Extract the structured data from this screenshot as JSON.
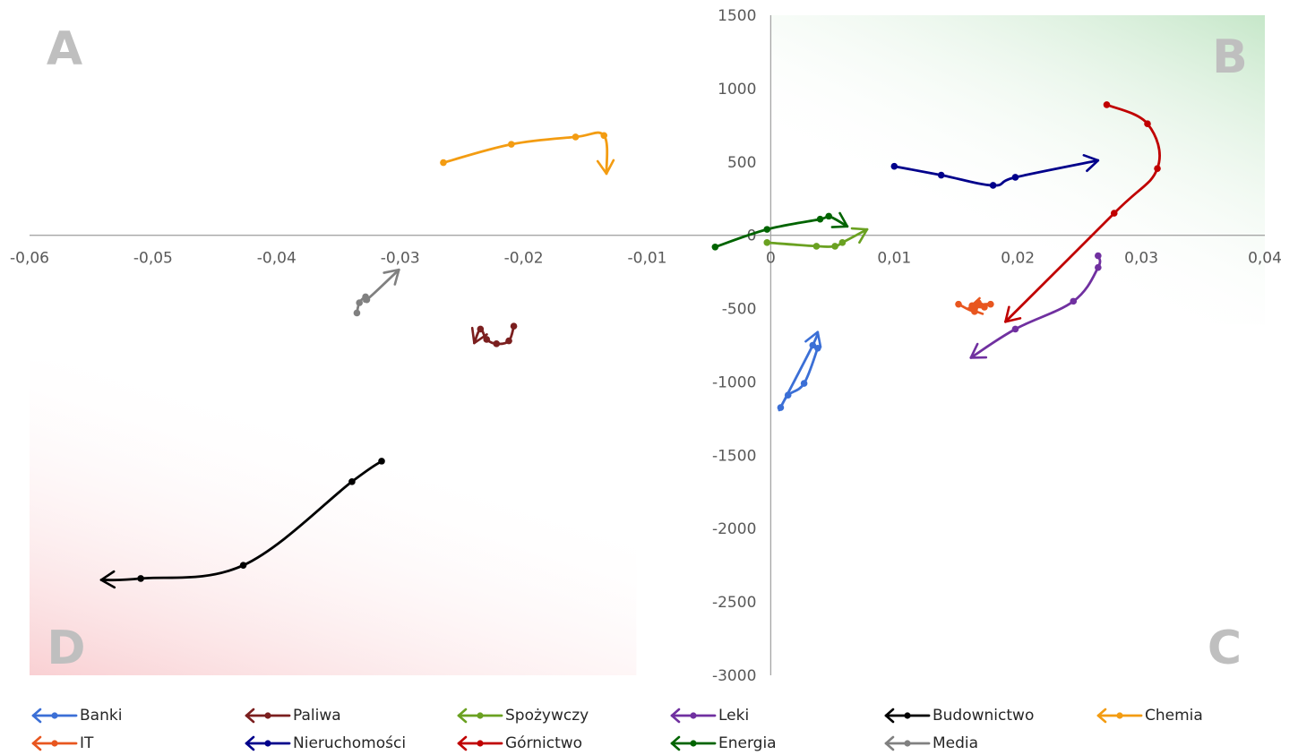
{
  "chart_data": {
    "type": "scatter",
    "xlim": [
      -0.06,
      0.04
    ],
    "ylim": [
      -3000,
      1500
    ],
    "x_ticks": [
      -0.06,
      -0.05,
      -0.04,
      -0.03,
      -0.02,
      -0.01,
      0,
      0.01,
      0.02,
      0.03,
      0.04
    ],
    "x_tick_labels": [
      "-0,06",
      "-0,05",
      "-0,04",
      "-0,03",
      "-0,02",
      "-0,01",
      "0",
      "0,01",
      "0,02",
      "0,03",
      "0,04"
    ],
    "y_ticks": [
      1500,
      1000,
      500,
      0,
      -500,
      -1000,
      -1500,
      -2000,
      -2500,
      -3000
    ],
    "y_tick_labels": [
      "1500",
      "1000",
      "500",
      "0",
      "-500",
      "-1000",
      "-1500",
      "-2000",
      "-2500",
      "-3000"
    ],
    "grid": false,
    "legend_position": "bottom",
    "quadrants": [
      {
        "label": "A",
        "position": "top-left"
      },
      {
        "label": "B",
        "position": "top-right",
        "shade": "#c6e7c9"
      },
      {
        "label": "C",
        "position": "bottom-right"
      },
      {
        "label": "D",
        "position": "bottom-left",
        "shade": "#f9d0d3"
      }
    ],
    "series": [
      {
        "name": "Banki",
        "color": "#3b6fd6",
        "points": [
          [
            0.0038,
            -770
          ],
          [
            0.0027,
            -1010
          ],
          [
            0.0014,
            -1090
          ],
          [
            0.0008,
            -1175
          ],
          [
            0.0034,
            -750
          ],
          [
            0.0038,
            -660
          ]
        ]
      },
      {
        "name": "Paliwa",
        "color": "#7b1f1f",
        "points": [
          [
            -0.0208,
            -620
          ],
          [
            -0.0212,
            -720
          ],
          [
            -0.0222,
            -740
          ],
          [
            -0.023,
            -710
          ],
          [
            -0.0235,
            -640
          ],
          [
            -0.024,
            -735
          ]
        ]
      },
      {
        "name": "Spożywczy",
        "color": "#6aa121",
        "points": [
          [
            -0.0003,
            -50
          ],
          [
            0.0037,
            -75
          ],
          [
            0.0052,
            -75
          ],
          [
            0.0058,
            -50
          ],
          [
            0.0078,
            40
          ]
        ]
      },
      {
        "name": "Leki",
        "color": "#7030a0",
        "points": [
          [
            0.0265,
            -140
          ],
          [
            0.0265,
            -220
          ],
          [
            0.0245,
            -450
          ],
          [
            0.0198,
            -640
          ],
          [
            0.0162,
            -835
          ]
        ]
      },
      {
        "name": "Budownictwo",
        "color": "#000000",
        "points": [
          [
            -0.0315,
            -1540
          ],
          [
            -0.0339,
            -1680
          ],
          [
            -0.0427,
            -2250
          ],
          [
            -0.051,
            -2340
          ],
          [
            -0.0542,
            -2350
          ]
        ]
      },
      {
        "name": "Chemia",
        "color": "#f39c12",
        "points": [
          [
            -0.0265,
            495
          ],
          [
            -0.021,
            620
          ],
          [
            -0.0158,
            670
          ],
          [
            -0.0135,
            680
          ],
          [
            -0.0133,
            420
          ]
        ]
      },
      {
        "name": "IT",
        "color": "#e8561f",
        "points": [
          [
            0.0152,
            -470
          ],
          [
            0.0165,
            -520
          ],
          [
            0.0168,
            -460
          ],
          [
            0.0173,
            -490
          ],
          [
            0.0163,
            -480
          ],
          [
            0.0178,
            -470
          ],
          [
            0.016,
            -500
          ]
        ]
      },
      {
        "name": "Nieruchomości",
        "color": "#00008b",
        "points": [
          [
            0.01,
            470
          ],
          [
            0.0138,
            410
          ],
          [
            0.018,
            340
          ],
          [
            0.0198,
            395
          ],
          [
            0.0265,
            510
          ]
        ]
      },
      {
        "name": "Górnictwo",
        "color": "#c00000",
        "points": [
          [
            0.0272,
            890
          ],
          [
            0.0305,
            760
          ],
          [
            0.0313,
            455
          ],
          [
            0.0278,
            150
          ],
          [
            0.019,
            -590
          ]
        ]
      },
      {
        "name": "Energia",
        "color": "#006400",
        "points": [
          [
            -0.0045,
            -80
          ],
          [
            -0.0003,
            40
          ],
          [
            0.004,
            110
          ],
          [
            0.0047,
            130
          ],
          [
            0.0062,
            60
          ]
        ]
      },
      {
        "name": "Media",
        "color": "#808080",
        "points": [
          [
            -0.0335,
            -530
          ],
          [
            -0.0333,
            -460
          ],
          [
            -0.0328,
            -420
          ],
          [
            -0.0327,
            -440
          ],
          [
            -0.0301,
            -235
          ]
        ]
      }
    ]
  }
}
